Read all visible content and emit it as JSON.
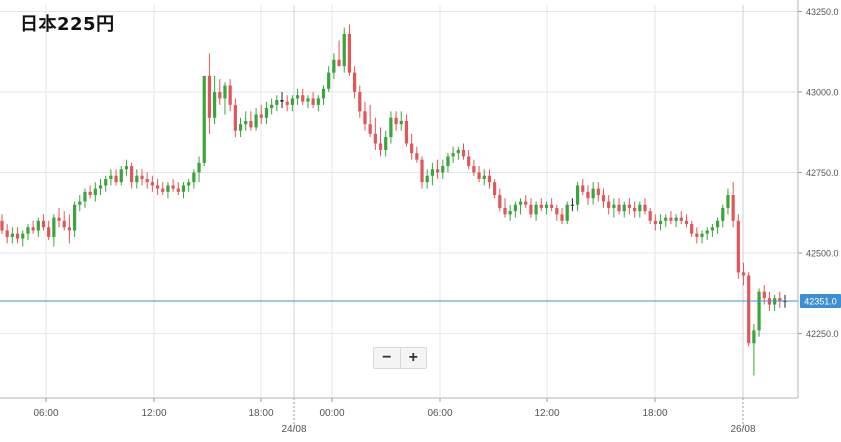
{
  "title": "日本225円",
  "controls": {
    "zoom_out": "−",
    "zoom_in": "+"
  },
  "colors": {
    "up": "#3aa53a",
    "down": "#e0575b",
    "grid": "#e6e6e6",
    "current_line": "#3d8fd1",
    "current_label_bg": "#3d8fd1",
    "axis_text": "#555555"
  },
  "chart_data": {
    "type": "candlestick",
    "title": "日本225円",
    "xlabel": "",
    "ylabel": "",
    "x_axis": {
      "time_ticks": [
        "06:00",
        "12:00",
        "18:00",
        "00:00",
        "06:00",
        "12:00",
        "18:00"
      ],
      "date_labels": [
        "24/08",
        "26/08"
      ]
    },
    "y_axis": {
      "ticks": [
        "42250.0",
        "42500.0",
        "42750.0",
        "43000.0",
        "43250.0"
      ],
      "range": [
        42050,
        43270
      ],
      "position": "right"
    },
    "current_price": {
      "value": 42351,
      "label": "42351.0"
    },
    "grid": true,
    "legend": "none",
    "series": [
      {
        "ohlc": [
          [
            42600,
            42620,
            42560,
            42570
          ],
          [
            42570,
            42590,
            42530,
            42550
          ],
          [
            42550,
            42580,
            42530,
            42560
          ],
          [
            42560,
            42580,
            42530,
            42545
          ],
          [
            42545,
            42570,
            42520,
            42560
          ],
          [
            42560,
            42590,
            42540,
            42580
          ],
          [
            42580,
            42600,
            42560,
            42570
          ],
          [
            42570,
            42610,
            42550,
            42600
          ],
          [
            42600,
            42620,
            42570,
            42580
          ],
          [
            42580,
            42600,
            42540,
            42550
          ],
          [
            42550,
            42620,
            42520,
            42610
          ],
          [
            42610,
            42640,
            42580,
            42600
          ],
          [
            42600,
            42630,
            42570,
            42580
          ],
          [
            42580,
            42620,
            42530,
            42570
          ],
          [
            42570,
            42660,
            42550,
            42650
          ],
          [
            42650,
            42680,
            42630,
            42660
          ],
          [
            42660,
            42700,
            42640,
            42690
          ],
          [
            42690,
            42710,
            42670,
            42680
          ],
          [
            42680,
            42720,
            42660,
            42700
          ],
          [
            42700,
            42730,
            42680,
            42710
          ],
          [
            42710,
            42740,
            42690,
            42730
          ],
          [
            42730,
            42760,
            42710,
            42740
          ],
          [
            42740,
            42760,
            42710,
            42720
          ],
          [
            42720,
            42770,
            42710,
            42760
          ],
          [
            42760,
            42790,
            42740,
            42770
          ],
          [
            42770,
            42780,
            42700,
            42720
          ],
          [
            42720,
            42760,
            42700,
            42740
          ],
          [
            42740,
            42760,
            42710,
            42730
          ],
          [
            42730,
            42750,
            42700,
            42720
          ],
          [
            42720,
            42740,
            42690,
            42710
          ],
          [
            42710,
            42730,
            42680,
            42700
          ],
          [
            42700,
            42720,
            42680,
            42690
          ],
          [
            42690,
            42720,
            42670,
            42710
          ],
          [
            42710,
            42730,
            42690,
            42700
          ],
          [
            42700,
            42720,
            42680,
            42690
          ],
          [
            42690,
            42720,
            42670,
            42710
          ],
          [
            42710,
            42730,
            42690,
            42720
          ],
          [
            42720,
            42760,
            42700,
            42750
          ],
          [
            42750,
            42800,
            42720,
            42780
          ],
          [
            42780,
            43050,
            42770,
            43050
          ],
          [
            43050,
            43120,
            42870,
            42920
          ],
          [
            42920,
            43050,
            42900,
            43000
          ],
          [
            43000,
            43040,
            42960,
            42980
          ],
          [
            42980,
            43030,
            42930,
            43020
          ],
          [
            43020,
            43040,
            42940,
            42960
          ],
          [
            42960,
            42980,
            42860,
            42880
          ],
          [
            42880,
            42920,
            42860,
            42900
          ],
          [
            42900,
            42940,
            42880,
            42910
          ],
          [
            42910,
            42940,
            42880,
            42890
          ],
          [
            42890,
            42950,
            42880,
            42930
          ],
          [
            42930,
            42960,
            42900,
            42920
          ],
          [
            42920,
            42970,
            42900,
            42950
          ],
          [
            42950,
            42980,
            42930,
            42960
          ],
          [
            42960,
            42990,
            42940,
            42975
          ],
          [
            42975,
            43000,
            42950,
            42970
          ],
          [
            42970,
            42990,
            42940,
            42960
          ],
          [
            42960,
            42990,
            42940,
            42980
          ],
          [
            42980,
            43010,
            42960,
            42990
          ],
          [
            42990,
            43010,
            42960,
            42970
          ],
          [
            42970,
            42990,
            42950,
            42980
          ],
          [
            42980,
            43000,
            42950,
            42960
          ],
          [
            42960,
            42990,
            42940,
            42980
          ],
          [
            42980,
            43020,
            42960,
            43010
          ],
          [
            43010,
            43080,
            43000,
            43060
          ],
          [
            43060,
            43120,
            43040,
            43100
          ],
          [
            43100,
            43160,
            43080,
            43080
          ],
          [
            43080,
            43200,
            43060,
            43180
          ],
          [
            43180,
            43210,
            43050,
            43060
          ],
          [
            43060,
            43080,
            42980,
            43000
          ],
          [
            43000,
            43020,
            42920,
            42940
          ],
          [
            42940,
            42970,
            42880,
            42900
          ],
          [
            42900,
            42960,
            42860,
            42870
          ],
          [
            42870,
            42920,
            42820,
            42840
          ],
          [
            42840,
            42890,
            42800,
            42820
          ],
          [
            42820,
            42880,
            42800,
            42860
          ],
          [
            42860,
            42940,
            42840,
            42920
          ],
          [
            42920,
            42940,
            42880,
            42900
          ],
          [
            42900,
            42940,
            42880,
            42910
          ],
          [
            42910,
            42930,
            42830,
            42840
          ],
          [
            42840,
            42870,
            42790,
            42810
          ],
          [
            42810,
            42830,
            42780,
            42790
          ],
          [
            42790,
            42800,
            42700,
            42720
          ],
          [
            42720,
            42760,
            42700,
            42740
          ],
          [
            42740,
            42780,
            42710,
            42760
          ],
          [
            42760,
            42790,
            42730,
            42750
          ],
          [
            42750,
            42790,
            42730,
            42770
          ],
          [
            42770,
            42810,
            42750,
            42800
          ],
          [
            42800,
            42830,
            42780,
            42810
          ],
          [
            42810,
            42830,
            42790,
            42820
          ],
          [
            42820,
            42840,
            42790,
            42800
          ],
          [
            42800,
            42820,
            42760,
            42770
          ],
          [
            42770,
            42790,
            42740,
            42750
          ],
          [
            42750,
            42770,
            42720,
            42730
          ],
          [
            42730,
            42760,
            42710,
            42740
          ],
          [
            42740,
            42760,
            42700,
            42720
          ],
          [
            42720,
            42730,
            42670,
            42680
          ],
          [
            42680,
            42700,
            42630,
            42640
          ],
          [
            42640,
            42670,
            42610,
            42620
          ],
          [
            42620,
            42650,
            42600,
            42630
          ],
          [
            42630,
            42660,
            42610,
            42650
          ],
          [
            42650,
            42670,
            42620,
            42660
          ],
          [
            42660,
            42680,
            42640,
            42650
          ],
          [
            42650,
            42670,
            42610,
            42620
          ],
          [
            42620,
            42660,
            42600,
            42650
          ],
          [
            42650,
            42670,
            42630,
            42640
          ],
          [
            42640,
            42660,
            42620,
            42650
          ],
          [
            42650,
            42670,
            42630,
            42640
          ],
          [
            42640,
            42650,
            42600,
            42620
          ],
          [
            42620,
            42640,
            42590,
            42600
          ],
          [
            42600,
            42660,
            42590,
            42650
          ],
          [
            42650,
            42670,
            42630,
            42650
          ],
          [
            42650,
            42720,
            42630,
            42710
          ],
          [
            42710,
            42730,
            42680,
            42690
          ],
          [
            42690,
            42710,
            42650,
            42670
          ],
          [
            42670,
            42720,
            42650,
            42700
          ],
          [
            42700,
            42720,
            42660,
            42680
          ],
          [
            42680,
            42700,
            42640,
            42660
          ],
          [
            42660,
            42680,
            42620,
            42640
          ],
          [
            42640,
            42670,
            42610,
            42650
          ],
          [
            42650,
            42670,
            42620,
            42630
          ],
          [
            42630,
            42660,
            42610,
            42650
          ],
          [
            42650,
            42670,
            42620,
            42640
          ],
          [
            42640,
            42660,
            42610,
            42630
          ],
          [
            42630,
            42660,
            42610,
            42650
          ],
          [
            42650,
            42670,
            42620,
            42630
          ],
          [
            42630,
            42640,
            42590,
            42600
          ],
          [
            42600,
            42620,
            42570,
            42590
          ],
          [
            42590,
            42620,
            42570,
            42600
          ],
          [
            42600,
            42620,
            42580,
            42610
          ],
          [
            42610,
            42630,
            42590,
            42600
          ],
          [
            42600,
            42620,
            42580,
            42610
          ],
          [
            42610,
            42630,
            42590,
            42600
          ],
          [
            42600,
            42620,
            42580,
            42590
          ],
          [
            42590,
            42600,
            42550,
            42560
          ],
          [
            42560,
            42580,
            42530,
            42550
          ],
          [
            42550,
            42570,
            42530,
            42560
          ],
          [
            42560,
            42580,
            42540,
            42570
          ],
          [
            42570,
            42590,
            42550,
            42580
          ],
          [
            42580,
            42610,
            42560,
            42600
          ],
          [
            42600,
            42650,
            42580,
            42640
          ],
          [
            42640,
            42700,
            42620,
            42680
          ],
          [
            42680,
            42720,
            42580,
            42600
          ],
          [
            42600,
            42620,
            42420,
            42440
          ],
          [
            42440,
            42470,
            42400,
            42430
          ],
          [
            42430,
            42440,
            42210,
            42220
          ],
          [
            42220,
            42280,
            42120,
            42260
          ],
          [
            42260,
            42390,
            42240,
            42380
          ],
          [
            42380,
            42400,
            42340,
            42360
          ],
          [
            42360,
            42380,
            42320,
            42340
          ],
          [
            42340,
            42370,
            42320,
            42360
          ],
          [
            42360,
            42380,
            42330,
            42350
          ],
          [
            42350,
            42370,
            42330,
            42351
          ]
        ]
      }
    ]
  }
}
